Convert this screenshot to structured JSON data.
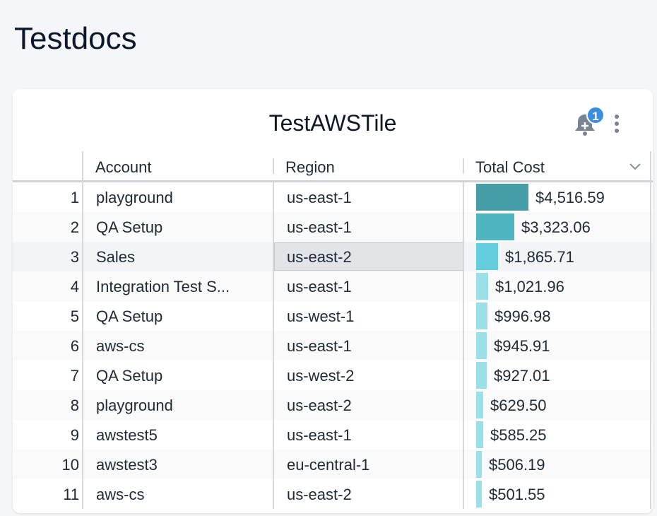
{
  "page_title": "Testdocs",
  "tile": {
    "title": "TestAWSTile",
    "notification_count": "1",
    "icons": [
      "bell-plus-icon",
      "more-vertical-icon",
      "chevron-down-icon"
    ]
  },
  "columns": {
    "account": "Account",
    "region": "Region",
    "total_cost": "Total Cost"
  },
  "bar_colors": {
    "high": "#459ea6",
    "mid": "#4fb5c1",
    "low": "#63cddb",
    "min": "#9be0e8"
  },
  "max_cost": 4516.59,
  "selected_row": 3,
  "rows": [
    {
      "n": "1",
      "account": "playground",
      "region": "us-east-1",
      "cost": "$4,516.59",
      "value": 4516.59
    },
    {
      "n": "2",
      "account": "QA Setup",
      "region": "us-east-1",
      "cost": "$3,323.06",
      "value": 3323.06
    },
    {
      "n": "3",
      "account": "Sales",
      "region": "us-east-2",
      "cost": "$1,865.71",
      "value": 1865.71
    },
    {
      "n": "4",
      "account": "Integration Test S...",
      "region": "us-east-1",
      "cost": "$1,021.96",
      "value": 1021.96
    },
    {
      "n": "5",
      "account": "QA Setup",
      "region": "us-west-1",
      "cost": "$996.98",
      "value": 996.98
    },
    {
      "n": "6",
      "account": "aws-cs",
      "region": "us-east-1",
      "cost": "$945.91",
      "value": 945.91
    },
    {
      "n": "7",
      "account": "QA Setup",
      "region": "us-west-2",
      "cost": "$927.01",
      "value": 927.01
    },
    {
      "n": "8",
      "account": "playground",
      "region": "us-east-2",
      "cost": "$629.50",
      "value": 629.5
    },
    {
      "n": "9",
      "account": "awstest5",
      "region": "us-east-1",
      "cost": "$585.25",
      "value": 585.25
    },
    {
      "n": "10",
      "account": "awstest3",
      "region": "eu-central-1",
      "cost": "$506.19",
      "value": 506.19
    },
    {
      "n": "11",
      "account": "aws-cs",
      "region": "us-east-2",
      "cost": "$501.55",
      "value": 501.55
    }
  ]
}
